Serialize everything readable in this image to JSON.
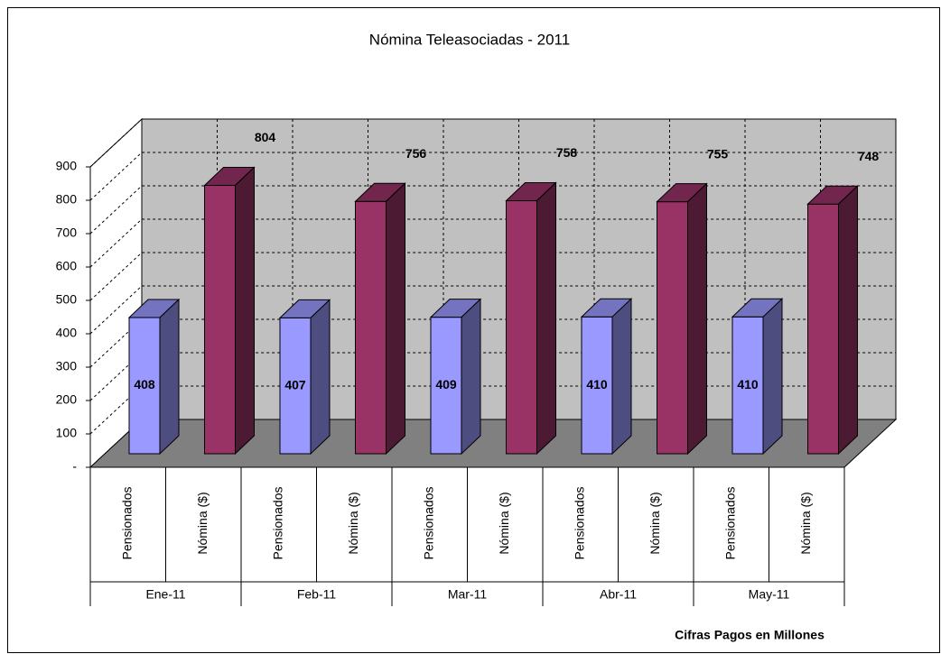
{
  "chart_data": {
    "type": "bar3d",
    "title": "Nómina Teleasociadas - 2011",
    "annotation": "Cifras Pagos  en Millones",
    "categories": [
      "Ene-11",
      "Feb-11",
      "Mar-11",
      "Abr-11",
      "May-11"
    ],
    "series": [
      {
        "name": "Pensionados",
        "color": "#9999ff",
        "values": [
          408,
          407,
          409,
          410,
          410
        ]
      },
      {
        "name": "Nómina ($)",
        "color": "#993366",
        "values": [
          804,
          756,
          758,
          755,
          748
        ]
      }
    ],
    "ylim": [
      0,
      900
    ],
    "yticks": [
      {
        "value": 0,
        "label": "-"
      },
      100,
      200,
      300,
      400,
      500,
      600,
      700,
      800,
      900
    ],
    "grid": true
  }
}
